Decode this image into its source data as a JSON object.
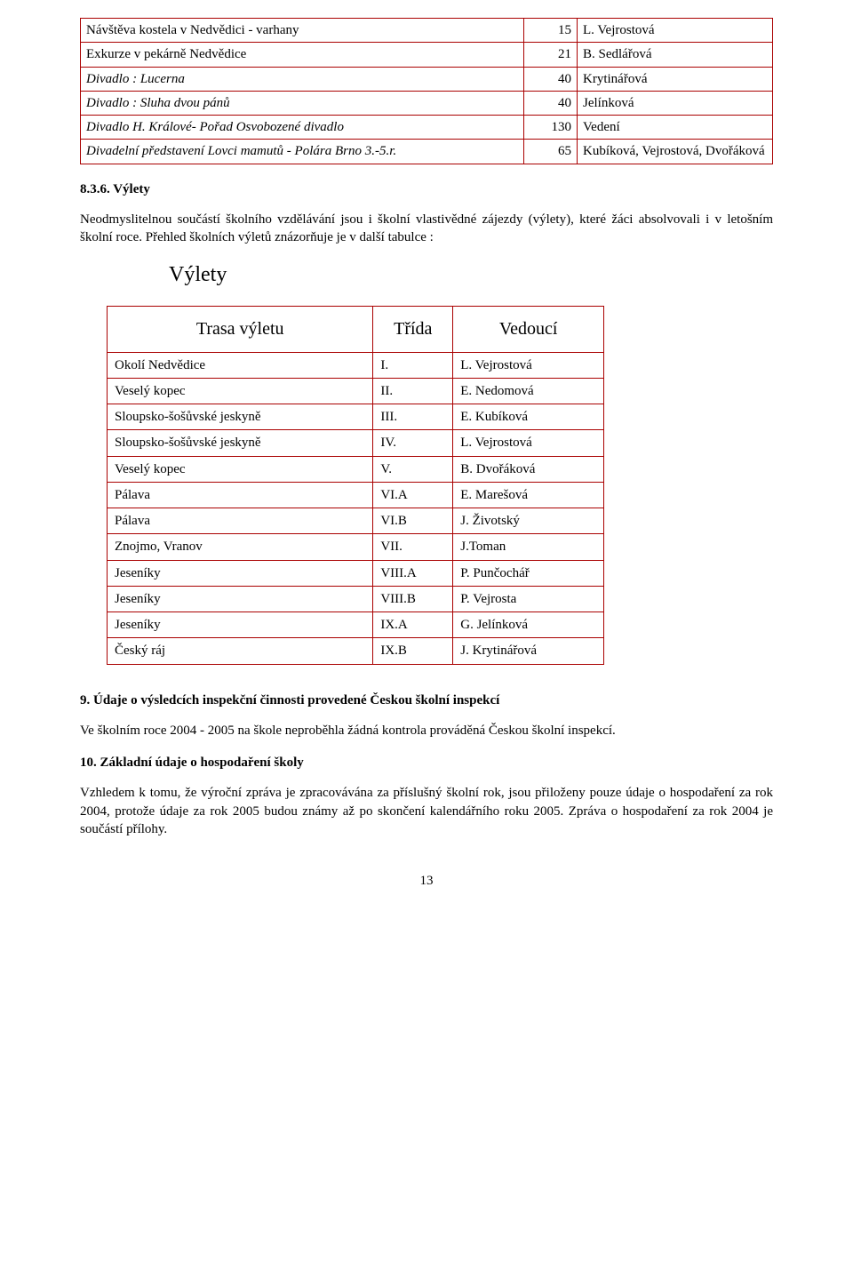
{
  "table1": {
    "rows": [
      {
        "desc": "Návštěva kostela v Nedvědici - varhany",
        "num": "15",
        "who": "L. Vejrostová",
        "ital": false
      },
      {
        "desc": "Exkurze v pekárně Nedvědice",
        "num": "21",
        "who": "B. Sedlářová",
        "ital": false
      },
      {
        "desc": "Divadlo : Lucerna",
        "num": "40",
        "who": "Krytinářová",
        "ital": true
      },
      {
        "desc": "Divadlo : Sluha dvou pánů",
        "num": "40",
        "who": "Jelínková",
        "ital": true
      },
      {
        "desc": "Divadlo H. Králové- Pořad Osvobozené divadlo",
        "num": "130",
        "who": "Vedení",
        "ital": true
      },
      {
        "desc": "Divadelní představení Lovci mamutů - Polára Brno 3.-5.r.",
        "num": "65",
        "who": "Kubíková, Vejrostová, Dvořáková",
        "ital": true
      }
    ]
  },
  "sectionTrips": {
    "heading": "8.3.6. Výlety",
    "paragraph": "Neodmyslitelnou součástí školního vzdělávání jsou i školní vlastivědné zájezdy (výlety), které žáci absolvovali i v letošním školní roce. Přehled školních výletů znázorňuje je v další tabulce :",
    "title": "Výlety",
    "headers": {
      "route": "Trasa výletu",
      "klass": "Třída",
      "leader": "Vedoucí"
    },
    "rows": [
      {
        "route": "Okolí Nedvědice",
        "klass": "I.",
        "leader": "L. Vejrostová"
      },
      {
        "route": "Veselý kopec",
        "klass": "II.",
        "leader": "E. Nedomová"
      },
      {
        "route": "Sloupsko-šošůvské jeskyně",
        "klass": "III.",
        "leader": "E. Kubíková"
      },
      {
        "route": "Sloupsko-šošůvské jeskyně",
        "klass": "IV.",
        "leader": "L. Vejrostová"
      },
      {
        "route": "Veselý kopec",
        "klass": "V.",
        "leader": "B. Dvořáková"
      },
      {
        "route": "Pálava",
        "klass": "VI.A",
        "leader": "E. Marešová"
      },
      {
        "route": "Pálava",
        "klass": "VI.B",
        "leader": "J. Životský"
      },
      {
        "route": "Znojmo, Vranov",
        "klass": "VII.",
        "leader": "J.Toman"
      },
      {
        "route": "Jeseníky",
        "klass": "VIII.A",
        "leader": "P. Punčochář"
      },
      {
        "route": "Jeseníky",
        "klass": "VIII.B",
        "leader": "P. Vejrosta"
      },
      {
        "route": "Jeseníky",
        "klass": "IX.A",
        "leader": "G. Jelínková"
      },
      {
        "route": "Český ráj",
        "klass": "IX.B",
        "leader": "J. Krytinářová"
      }
    ]
  },
  "section9": {
    "heading": "9. Údaje o výsledcích inspekční činnosti provedené Českou školní inspekcí",
    "text": "Ve školním roce 2004 - 2005 na škole neproběhla žádná kontrola prováděná Českou  školní inspekcí."
  },
  "section10": {
    "heading": "10. Základní údaje o hospodaření školy",
    "text": "Vzhledem k tomu, že výroční zpráva je zpracovávána za příslušný školní rok, jsou přiloženy pouze údaje o hospodaření za rok 2004, protože údaje za rok 2005 budou známy až po skončení kalendářního roku 2005. Zpráva o hospodaření za rok 2004 je součástí přílohy."
  },
  "pageNumber": "13",
  "style": {
    "border_color": "#a00",
    "font": "Times New Roman"
  }
}
